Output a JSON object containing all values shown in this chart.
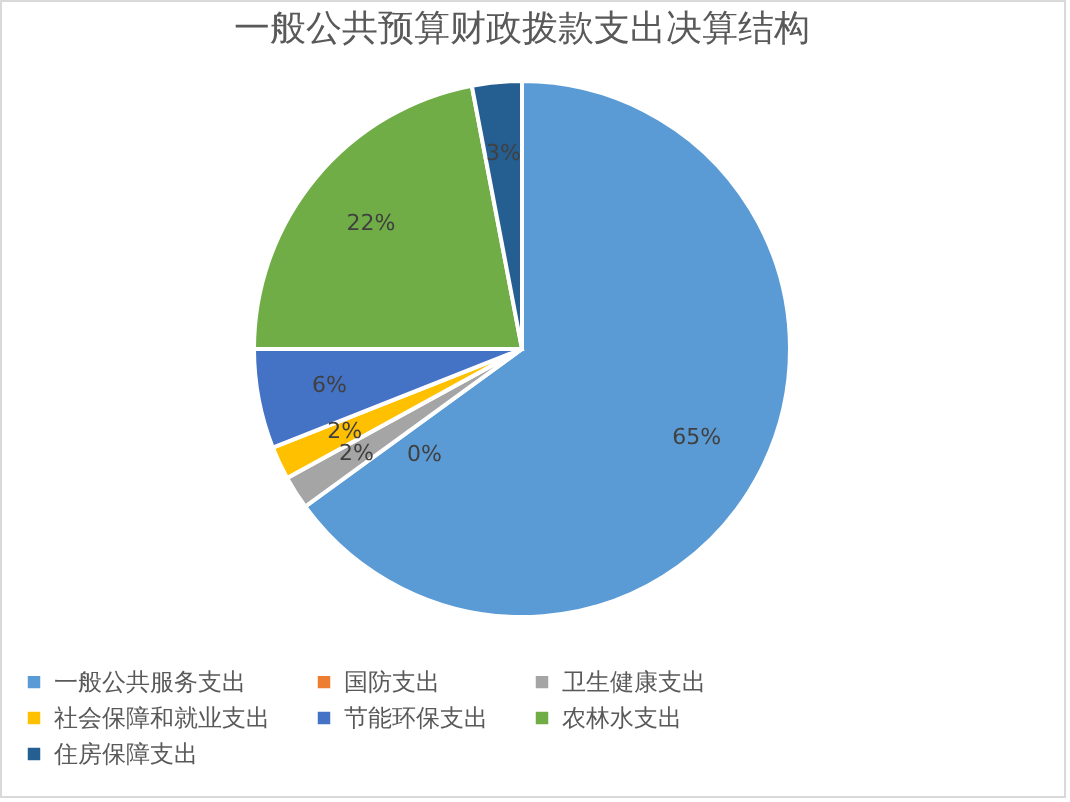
{
  "chart_data": {
    "type": "pie",
    "title": "一般公共预算财政拨款支出决算结构",
    "categories": [
      "一般公共服务支出",
      "国防支出",
      "卫生健康支出",
      "社会保障和就业支出",
      "节能环保支出",
      "农林水支出",
      "住房保障支出"
    ],
    "values": [
      65,
      0,
      2,
      2,
      6,
      22,
      3
    ],
    "value_labels": [
      "65%",
      "0%",
      "2%",
      "2%",
      "6%",
      "22%",
      "3%"
    ],
    "colors": [
      "#5b9bd5",
      "#ed7d31",
      "#a5a5a5",
      "#ffc000",
      "#4472c4",
      "#70ad47",
      "#255e91"
    ],
    "legend": "bottom"
  }
}
